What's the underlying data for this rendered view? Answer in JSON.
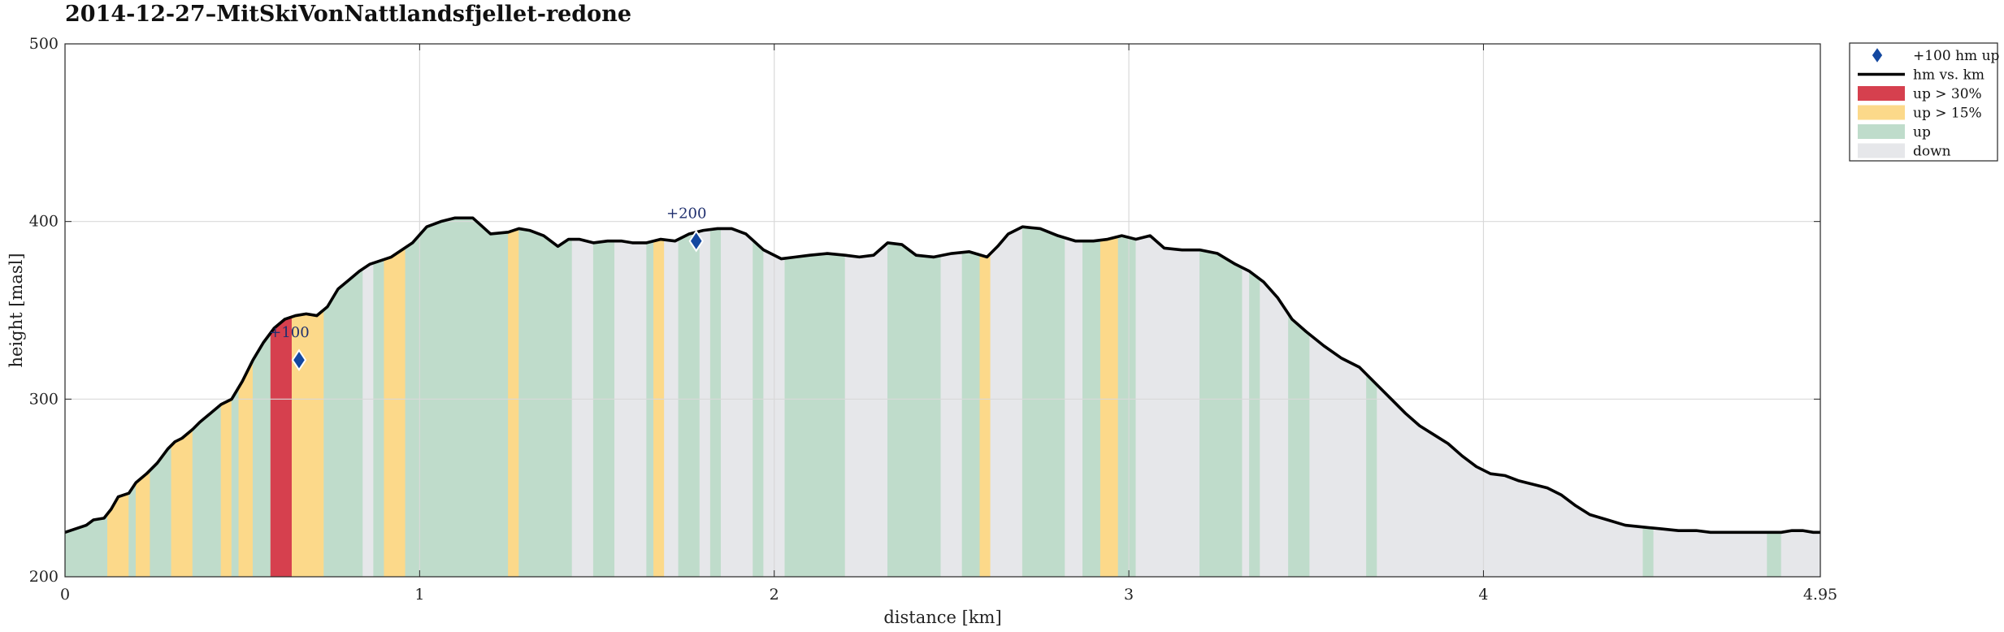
{
  "chart_data": {
    "type": "area",
    "title": "2014-12-27–MitSkiVonNattlandsfjellet-redone",
    "xlabel": "distance [km]",
    "ylabel": "height [masl]",
    "xlim": [
      0,
      4.95
    ],
    "ylim": [
      200,
      500
    ],
    "xticks": [
      0,
      1,
      2,
      3,
      4,
      4.95
    ],
    "xtick_labels": [
      "0",
      "1",
      "2",
      "3",
      "4",
      "4.95"
    ],
    "yticks": [
      200,
      300,
      400,
      500
    ],
    "ytick_labels": [
      "200",
      "300",
      "400",
      "500"
    ],
    "grid": true,
    "legend_position": "outside-top-right",
    "colors": {
      "line": "#000000",
      "up_30": "#d6404e",
      "up_15": "#fcd98a",
      "up": "#bfdccb",
      "down": "#e6e7ea",
      "marker": "#1348a0",
      "grid": "#d9d9d9"
    },
    "legend": [
      {
        "key": "marker",
        "label": "+100 hm up"
      },
      {
        "key": "line",
        "label": "hm vs. km"
      },
      {
        "key": "up_30",
        "label": "up > 30%"
      },
      {
        "key": "up_15",
        "label": "up > 15%"
      },
      {
        "key": "up",
        "label": "up"
      },
      {
        "key": "down",
        "label": "down"
      }
    ],
    "profile": {
      "x": [
        0,
        0.06,
        0.08,
        0.11,
        0.13,
        0.15,
        0.18,
        0.2,
        0.23,
        0.26,
        0.29,
        0.31,
        0.33,
        0.36,
        0.38,
        0.41,
        0.44,
        0.47,
        0.5,
        0.53,
        0.56,
        0.59,
        0.62,
        0.65,
        0.68,
        0.71,
        0.74,
        0.77,
        0.8,
        0.83,
        0.86,
        0.89,
        0.92,
        0.95,
        0.98,
        1.02,
        1.06,
        1.1,
        1.15,
        1.2,
        1.25,
        1.28,
        1.31,
        1.35,
        1.39,
        1.42,
        1.45,
        1.49,
        1.53,
        1.57,
        1.6,
        1.64,
        1.68,
        1.72,
        1.76,
        1.8,
        1.84,
        1.88,
        1.92,
        1.97,
        2.02,
        2.06,
        2.1,
        2.15,
        2.2,
        2.24,
        2.28,
        2.32,
        2.36,
        2.4,
        2.45,
        2.5,
        2.55,
        2.6,
        2.63,
        2.66,
        2.7,
        2.75,
        2.8,
        2.85,
        2.9,
        2.94,
        2.98,
        3.02,
        3.06,
        3.1,
        3.15,
        3.2,
        3.25,
        3.3,
        3.34,
        3.38,
        3.42,
        3.46,
        3.5,
        3.55,
        3.6,
        3.65,
        3.7,
        3.74,
        3.78,
        3.82,
        3.86,
        3.9,
        3.94,
        3.98,
        4.02,
        4.06,
        4.1,
        4.14,
        4.18,
        4.22,
        4.26,
        4.3,
        4.35,
        4.4,
        4.45,
        4.5,
        4.55,
        4.6,
        4.64,
        4.68,
        4.72,
        4.76,
        4.8,
        4.84,
        4.87,
        4.9,
        4.93,
        4.95
      ],
      "y": [
        225,
        229,
        232,
        233,
        238,
        245,
        247,
        253,
        258,
        264,
        272,
        276,
        278,
        283,
        287,
        292,
        297,
        300,
        310,
        322,
        332,
        340,
        345,
        347,
        348,
        347,
        352,
        362,
        367,
        372,
        376,
        378,
        380,
        384,
        388,
        397,
        400,
        402,
        402,
        393,
        394,
        396,
        395,
        392,
        386,
        390,
        390,
        388,
        389,
        389,
        388,
        388,
        390,
        389,
        393,
        395,
        396,
        396,
        393,
        384,
        379,
        380,
        381,
        382,
        381,
        380,
        381,
        388,
        387,
        381,
        380,
        382,
        383,
        380,
        386,
        393,
        397,
        396,
        392,
        389,
        389,
        390,
        392,
        390,
        392,
        385,
        384,
        384,
        382,
        376,
        372,
        366,
        357,
        345,
        338,
        330,
        323,
        318,
        308,
        300,
        292,
        285,
        280,
        275,
        268,
        262,
        258,
        257,
        254,
        252,
        250,
        246,
        240,
        235,
        232,
        229,
        228,
        227,
        226,
        226,
        225,
        225,
        225,
        225,
        225,
        225,
        226,
        226,
        225,
        225
      ]
    },
    "segments": [
      {
        "from": 0,
        "to": 0.12,
        "class": "up"
      },
      {
        "from": 0.12,
        "to": 0.18,
        "class": "up_15"
      },
      {
        "from": 0.18,
        "to": 0.2,
        "class": "up"
      },
      {
        "from": 0.2,
        "to": 0.24,
        "class": "up_15"
      },
      {
        "from": 0.24,
        "to": 0.3,
        "class": "up"
      },
      {
        "from": 0.3,
        "to": 0.36,
        "class": "up_15"
      },
      {
        "from": 0.36,
        "to": 0.44,
        "class": "up"
      },
      {
        "from": 0.44,
        "to": 0.47,
        "class": "up_15"
      },
      {
        "from": 0.47,
        "to": 0.49,
        "class": "up"
      },
      {
        "from": 0.49,
        "to": 0.53,
        "class": "up_15"
      },
      {
        "from": 0.53,
        "to": 0.58,
        "class": "up"
      },
      {
        "from": 0.58,
        "to": 0.64,
        "class": "up_30"
      },
      {
        "from": 0.64,
        "to": 0.73,
        "class": "up_15"
      },
      {
        "from": 0.73,
        "to": 0.84,
        "class": "up"
      },
      {
        "from": 0.84,
        "to": 0.87,
        "class": "down"
      },
      {
        "from": 0.87,
        "to": 0.9,
        "class": "up"
      },
      {
        "from": 0.9,
        "to": 0.96,
        "class": "up_15"
      },
      {
        "from": 0.96,
        "to": 1.25,
        "class": "up"
      },
      {
        "from": 1.25,
        "to": 1.28,
        "class": "up_15"
      },
      {
        "from": 1.28,
        "to": 1.43,
        "class": "up"
      },
      {
        "from": 1.43,
        "to": 1.49,
        "class": "down"
      },
      {
        "from": 1.49,
        "to": 1.55,
        "class": "up"
      },
      {
        "from": 1.55,
        "to": 1.64,
        "class": "down"
      },
      {
        "from": 1.64,
        "to": 1.66,
        "class": "up"
      },
      {
        "from": 1.66,
        "to": 1.69,
        "class": "up_15"
      },
      {
        "from": 1.69,
        "to": 1.73,
        "class": "down"
      },
      {
        "from": 1.73,
        "to": 1.79,
        "class": "up"
      },
      {
        "from": 1.79,
        "to": 1.82,
        "class": "down"
      },
      {
        "from": 1.82,
        "to": 1.85,
        "class": "up"
      },
      {
        "from": 1.85,
        "to": 1.94,
        "class": "down"
      },
      {
        "from": 1.94,
        "to": 1.97,
        "class": "up"
      },
      {
        "from": 1.97,
        "to": 2.03,
        "class": "down"
      },
      {
        "from": 2.03,
        "to": 2.2,
        "class": "up"
      },
      {
        "from": 2.2,
        "to": 2.32,
        "class": "down"
      },
      {
        "from": 2.32,
        "to": 2.47,
        "class": "up"
      },
      {
        "from": 2.47,
        "to": 2.53,
        "class": "down"
      },
      {
        "from": 2.53,
        "to": 2.58,
        "class": "up"
      },
      {
        "from": 2.58,
        "to": 2.61,
        "class": "up_15"
      },
      {
        "from": 2.61,
        "to": 2.7,
        "class": "down"
      },
      {
        "from": 2.7,
        "to": 2.82,
        "class": "up"
      },
      {
        "from": 2.82,
        "to": 2.87,
        "class": "down"
      },
      {
        "from": 2.87,
        "to": 2.92,
        "class": "up"
      },
      {
        "from": 2.92,
        "to": 2.97,
        "class": "up_15"
      },
      {
        "from": 2.97,
        "to": 3.02,
        "class": "up"
      },
      {
        "from": 3.02,
        "to": 3.2,
        "class": "down"
      },
      {
        "from": 3.2,
        "to": 3.32,
        "class": "up"
      },
      {
        "from": 3.32,
        "to": 3.34,
        "class": "down"
      },
      {
        "from": 3.34,
        "to": 3.37,
        "class": "up"
      },
      {
        "from": 3.37,
        "to": 3.45,
        "class": "down"
      },
      {
        "from": 3.45,
        "to": 3.51,
        "class": "up"
      },
      {
        "from": 3.51,
        "to": 3.67,
        "class": "down"
      },
      {
        "from": 3.67,
        "to": 3.7,
        "class": "up"
      },
      {
        "from": 3.7,
        "to": 4.45,
        "class": "down"
      },
      {
        "from": 4.45,
        "to": 4.48,
        "class": "up"
      },
      {
        "from": 4.48,
        "to": 4.8,
        "class": "down"
      },
      {
        "from": 4.8,
        "to": 4.84,
        "class": "up"
      },
      {
        "from": 4.84,
        "to": 4.95,
        "class": "down"
      }
    ],
    "markers": [
      {
        "x": 0.66,
        "y": 322,
        "label": "+100"
      },
      {
        "x": 1.78,
        "y": 389,
        "label": "+200"
      }
    ]
  }
}
